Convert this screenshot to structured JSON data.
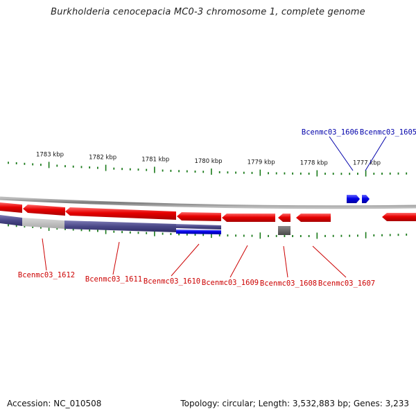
{
  "title": "Burkholderia cenocepacia MC0-3 chromosome 1, complete genome",
  "footer": {
    "accession": "Accession: NC_010508",
    "summary": "Topology: circular; Length: 3,532,883 bp; Genes: 3,233"
  },
  "colors": {
    "reverse_gene": "#e60000",
    "forward_gene": "#0000e6",
    "reverse_label": "#cc0000",
    "forward_label": "#0000aa",
    "cds_track": "#4a4888",
    "tick": "#1a7a1a",
    "backbone": "#888888"
  },
  "ruler": {
    "unit": "kbp",
    "labels": [
      {
        "kbp": 1783,
        "text": "1783 kbp"
      },
      {
        "kbp": 1782,
        "text": "1782 kbp"
      },
      {
        "kbp": 1781,
        "text": "1781 kbp"
      },
      {
        "kbp": 1780,
        "text": "1780 kbp"
      },
      {
        "kbp": 1779,
        "text": "1779 kbp"
      },
      {
        "kbp": 1778,
        "text": "1778 kbp"
      },
      {
        "kbp": 1777,
        "text": "1777 kbp"
      }
    ]
  },
  "genes": [
    {
      "id": "Bcenmc03_1612",
      "strand": "-"
    },
    {
      "id": "Bcenmc03_1611",
      "strand": "-"
    },
    {
      "id": "Bcenmc03_1610",
      "strand": "-"
    },
    {
      "id": "Bcenmc03_1609",
      "strand": "-"
    },
    {
      "id": "Bcenmc03_1608",
      "strand": "-"
    },
    {
      "id": "Bcenmc03_1607",
      "strand": "-"
    },
    {
      "id": "Bcenmc03_1606",
      "strand": "+"
    },
    {
      "id": "Bcenmc03_1605",
      "strand": "+"
    }
  ]
}
